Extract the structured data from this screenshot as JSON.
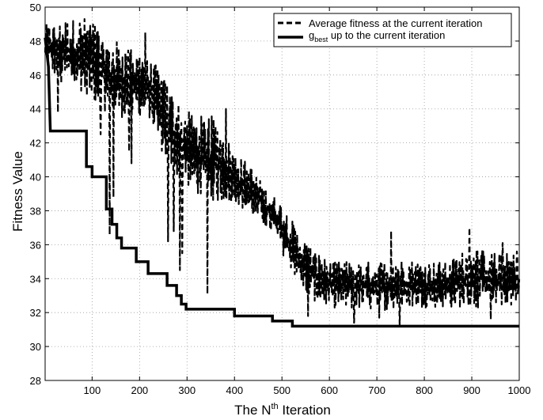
{
  "chart_data": {
    "type": "line",
    "xlabel": {
      "prefix": "The N",
      "sup": "th",
      "suffix": " Iteration"
    },
    "ylabel": "Fitness Value",
    "xlim": [
      1,
      1000
    ],
    "ylim": [
      28,
      50
    ],
    "xticks": [
      100,
      200,
      300,
      400,
      500,
      600,
      700,
      800,
      900,
      1000
    ],
    "yticks": [
      28,
      30,
      32,
      34,
      36,
      38,
      40,
      42,
      44,
      46,
      48,
      50
    ],
    "grid": true,
    "legend_position": "top-right",
    "legend": [
      {
        "main": "Average fitness at the current iteration",
        "sub": "",
        "rest": "",
        "style": "dashed"
      },
      {
        "main": "g",
        "sub": "best",
        "rest": " up to the current iteration",
        "style": "solid"
      }
    ],
    "series": [
      {
        "id": "average",
        "style": "dashed",
        "envelope": {
          "x": [
            1,
            20,
            40,
            60,
            80,
            100,
            120,
            140,
            160,
            180,
            200,
            220,
            240,
            260,
            280,
            300,
            320,
            340,
            360,
            380,
            400,
            420,
            440,
            460,
            480,
            500,
            520,
            540,
            560,
            580,
            600,
            650,
            700,
            750,
            800,
            850,
            900,
            950,
            1000
          ],
          "low": [
            46.5,
            46,
            45.5,
            45.2,
            45,
            44.5,
            44,
            43.5,
            43.5,
            43.5,
            43.5,
            43.5,
            42,
            40.5,
            40,
            39.5,
            39,
            38.5,
            38.5,
            38.5,
            38.5,
            38,
            37.5,
            37.2,
            36.5,
            35.5,
            34.5,
            33.5,
            32.8,
            32.5,
            32.3,
            32.2,
            32.1,
            32.2,
            32.3,
            32.3,
            32.2,
            32.3,
            32.4
          ],
          "high": [
            49,
            49,
            49.3,
            49.3,
            49.4,
            49.4,
            48.5,
            48,
            48,
            47.5,
            47.5,
            46.8,
            46.5,
            45.5,
            44.5,
            44,
            43.5,
            43.7,
            43.5,
            42.5,
            41.5,
            41,
            40.5,
            39.5,
            39,
            38.5,
            37.5,
            36.5,
            36,
            35.5,
            35,
            35,
            35,
            35.2,
            35,
            35,
            36,
            35.5,
            35.5
          ]
        },
        "spikes": [
          {
            "x": 28,
            "y": 43.8
          },
          {
            "x": 35,
            "y": 45.5
          },
          {
            "x": 118,
            "y": 42.5
          },
          {
            "x": 137,
            "y": 36.6
          },
          {
            "x": 145,
            "y": 38.8
          },
          {
            "x": 178,
            "y": 41.5
          },
          {
            "x": 183,
            "y": 40.8
          },
          {
            "x": 212,
            "y": 48.5
          },
          {
            "x": 260,
            "y": 36.2
          },
          {
            "x": 272,
            "y": 36.8
          },
          {
            "x": 285,
            "y": 34.5
          },
          {
            "x": 290,
            "y": 35.5
          },
          {
            "x": 343,
            "y": 33.1
          },
          {
            "x": 382,
            "y": 44.0
          },
          {
            "x": 555,
            "y": 31.8
          },
          {
            "x": 652,
            "y": 31.4
          },
          {
            "x": 705,
            "y": 31.7
          },
          {
            "x": 730,
            "y": 36.8
          },
          {
            "x": 748,
            "y": 31.3
          },
          {
            "x": 895,
            "y": 37.0
          },
          {
            "x": 940,
            "y": 31.6
          },
          {
            "x": 965,
            "y": 36.1
          },
          {
            "x": 995,
            "y": 35.6
          }
        ]
      },
      {
        "id": "gbest",
        "style": "solid",
        "steps": [
          [
            1,
            48.2
          ],
          [
            8,
            46.5
          ],
          [
            12,
            42.7
          ],
          [
            88,
            42.7
          ],
          [
            88,
            40.6
          ],
          [
            100,
            40.6
          ],
          [
            100,
            40.0
          ],
          [
            130,
            40.0
          ],
          [
            130,
            38.1
          ],
          [
            142,
            38.1
          ],
          [
            142,
            37.2
          ],
          [
            152,
            37.2
          ],
          [
            152,
            36.4
          ],
          [
            162,
            36.4
          ],
          [
            162,
            35.8
          ],
          [
            193,
            35.8
          ],
          [
            193,
            35.0
          ],
          [
            218,
            35.0
          ],
          [
            218,
            34.3
          ],
          [
            258,
            34.3
          ],
          [
            258,
            33.6
          ],
          [
            278,
            33.6
          ],
          [
            278,
            33.0
          ],
          [
            288,
            33.0
          ],
          [
            288,
            32.5
          ],
          [
            298,
            32.5
          ],
          [
            298,
            32.2
          ],
          [
            400,
            32.2
          ],
          [
            400,
            31.8
          ],
          [
            480,
            31.8
          ],
          [
            480,
            31.5
          ],
          [
            522,
            31.5
          ],
          [
            522,
            31.2
          ],
          [
            1000,
            31.2
          ]
        ]
      }
    ]
  }
}
